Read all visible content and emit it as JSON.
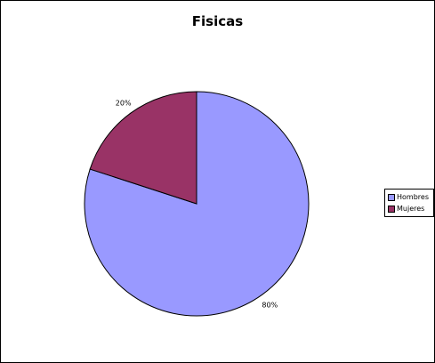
{
  "chart_data": {
    "type": "pie",
    "title": "Fisicas",
    "categories": [
      "Hombres",
      "Mujeres"
    ],
    "values": [
      80,
      20
    ],
    "labels": [
      "80%",
      "20%"
    ],
    "colors": [
      "#9999ff",
      "#993366"
    ],
    "start_angle_deg": 0,
    "direction": "clockwise",
    "legend_position": "right"
  },
  "legend": {
    "items": [
      {
        "label": "Hombres",
        "color": "#9999ff"
      },
      {
        "label": "Mujeres",
        "color": "#993366"
      }
    ]
  }
}
